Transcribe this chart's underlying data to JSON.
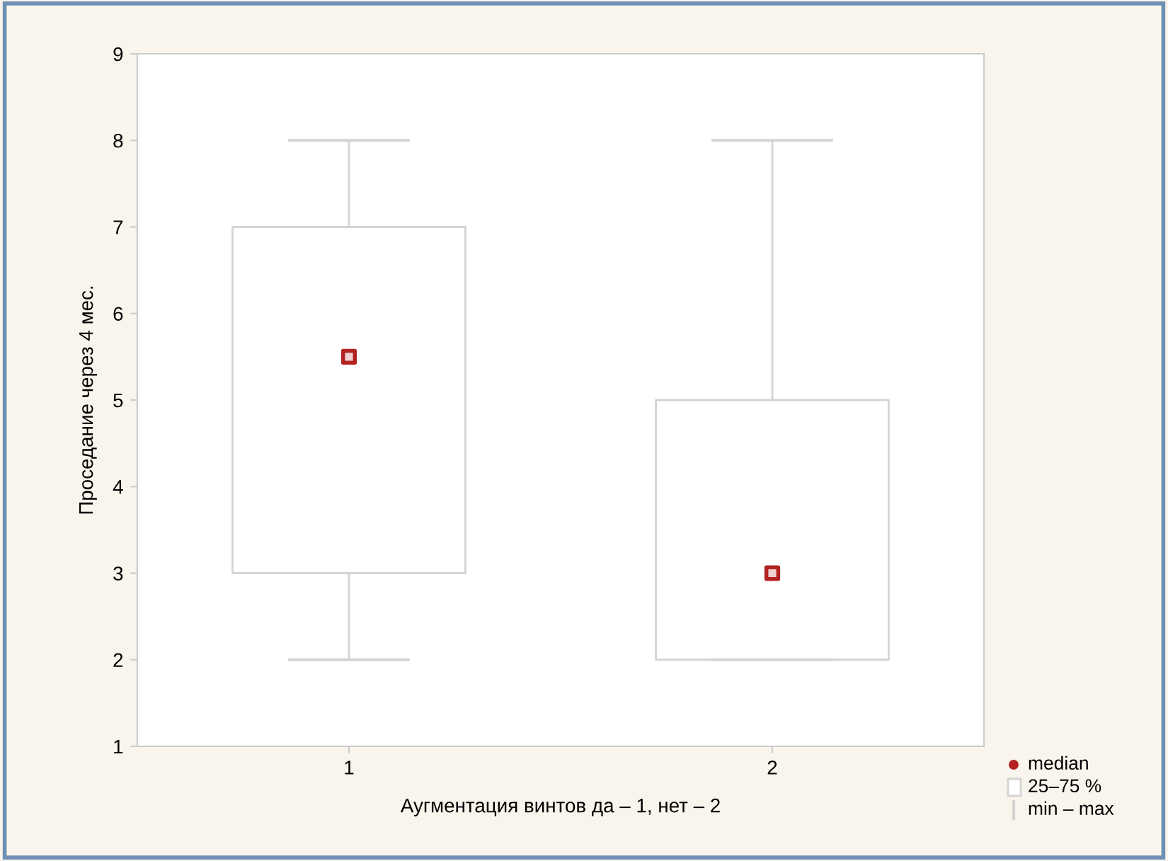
{
  "chart_data": {
    "type": "box",
    "xlabel": "Аугментация винтов да – 1, нет – 2",
    "ylabel": "Проседание через 4 мес.",
    "categories": [
      "1",
      "2"
    ],
    "boxes": [
      {
        "low": 2,
        "q1": 3,
        "median": 5.5,
        "q3": 7,
        "high": 8
      },
      {
        "low": 2,
        "q1": 2,
        "median": 3,
        "q3": 5,
        "high": 8
      }
    ],
    "color": "#d4d4d4",
    "ylim": [
      1,
      9
    ],
    "yticks": [
      1,
      2,
      3,
      4,
      5,
      6,
      7,
      8,
      9
    ],
    "grid": false,
    "marker": "square",
    "annotations": [
      "median",
      "25–75 %",
      "min – max"
    ]
  }
}
